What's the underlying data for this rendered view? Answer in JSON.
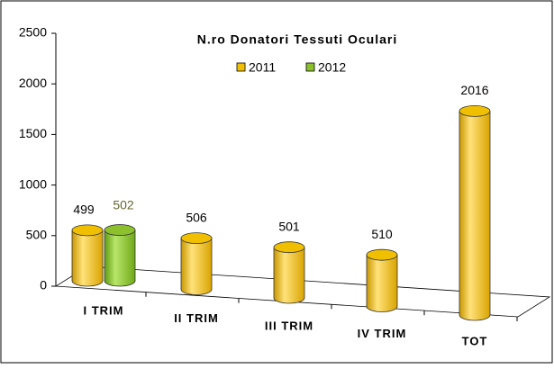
{
  "chart_data": {
    "type": "bar",
    "title": "N.ro Donatori Tessuti Oculari",
    "categories": [
      "I TRIM",
      "II TRIM",
      "III TRIM",
      "IV TRIM",
      "TOT"
    ],
    "series": [
      {
        "name": "2011",
        "color": "#f0c000",
        "values": [
          499,
          506,
          501,
          510,
          2016
        ]
      },
      {
        "name": "2012",
        "color": "#8cc02c",
        "values": [
          502,
          null,
          null,
          null,
          null
        ]
      }
    ],
    "ylim": [
      0,
      2500
    ],
    "yticks": [
      0,
      500,
      1000,
      1500,
      2000,
      2500
    ],
    "legend": "top"
  }
}
